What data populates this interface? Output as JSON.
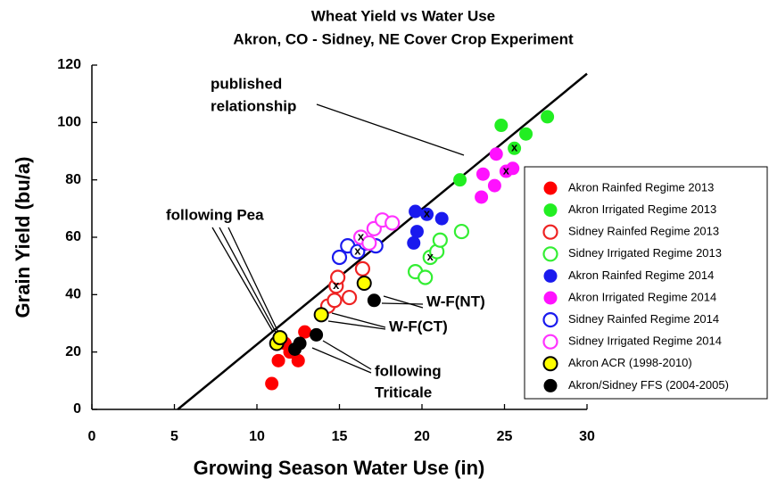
{
  "chart_data": {
    "type": "scatter",
    "title": "Wheat Yield vs Water Use",
    "subtitle": "Akron, CO - Sidney, NE Cover Crop Experiment",
    "x_label": "Growing Season Water Use (in)",
    "y_label": "Grain Yield (bu/a)",
    "xlim": [
      0,
      30
    ],
    "ylim": [
      0,
      120
    ],
    "xticks": [
      0,
      5,
      10,
      15,
      20,
      25,
      30
    ],
    "yticks": [
      0,
      20,
      40,
      60,
      80,
      100,
      120
    ],
    "grid": false,
    "legend": "right",
    "reference_line": {
      "x": [
        5.2,
        30
      ],
      "values": [
        0,
        117
      ],
      "color": "#000000"
    },
    "series": [
      {
        "name": "Akron Rainfed Regime 2013",
        "color": "#ff0000",
        "filled": true,
        "x": [
          10.9,
          11.3,
          12.0,
          12.5,
          12.9,
          11.7
        ],
        "values": [
          9,
          17,
          20,
          17,
          27,
          23
        ]
      },
      {
        "name": "Akron Irrigated Regime 2013",
        "color": "#22ee22",
        "filled": true,
        "x": [
          24.8,
          22.3,
          25.6,
          26.3,
          27.6
        ],
        "values": [
          99,
          80,
          91,
          96,
          102
        ]
      },
      {
        "name": "Sidney Rainfed Regime 2013",
        "color": "#ee2222",
        "filled": false,
        "x": [
          14.3,
          14.7,
          14.8,
          14.9,
          15.6,
          16.4
        ],
        "values": [
          36,
          38,
          43,
          46,
          39,
          49
        ]
      },
      {
        "name": "Sidney Irrigated Regime 2013",
        "color": "#33ee33",
        "filled": false,
        "x": [
          19.6,
          20.2,
          20.5,
          20.9,
          21.1,
          22.4
        ],
        "values": [
          48,
          46,
          53,
          55,
          59,
          62
        ]
      },
      {
        "name": "Akron Rainfed Regime 2014",
        "color": "#1a1aee",
        "filled": true,
        "x": [
          19.5,
          19.7,
          19.6,
          20.3,
          21.2
        ],
        "values": [
          58,
          62,
          69,
          68,
          66.5
        ]
      },
      {
        "name": "Akron Irrigated Regime 2014",
        "color": "#ff11ff",
        "filled": true,
        "x": [
          23.6,
          23.7,
          24.4,
          24.5,
          25.1,
          25.5
        ],
        "values": [
          74,
          82,
          78,
          89,
          83,
          84
        ]
      },
      {
        "name": "Sidney Rainfed Regime 2014",
        "color": "#1a1aee",
        "filled": false,
        "x": [
          15.0,
          15.5,
          16.1,
          16.6,
          17.2
        ],
        "values": [
          53,
          57,
          55,
          58,
          57
        ]
      },
      {
        "name": "Sidney Irrigated Regime 2014",
        "color": "#ff33ff",
        "filled": false,
        "x": [
          16.3,
          16.8,
          17.1,
          17.6,
          18.2
        ],
        "values": [
          60,
          58,
          63,
          66,
          65
        ]
      },
      {
        "name": "Akron ACR (1998-2010)",
        "color": "#ffff00",
        "edge": "#000000",
        "filled": true,
        "x": [
          11.2,
          11.4,
          13.9,
          16.5
        ],
        "values": [
          23,
          25,
          33,
          44
        ]
      },
      {
        "name": "Akron/Sidney FFS (2004-2005)",
        "color": "#000000",
        "filled": true,
        "x": [
          12.3,
          12.6,
          13.6,
          17.1
        ],
        "values": [
          21,
          23,
          26,
          38
        ]
      }
    ],
    "x_marks": {
      "label": "x",
      "x": [
        14.8,
        20.5,
        20.3,
        25.1,
        25.6,
        16.1,
        16.3
      ],
      "values": [
        43,
        53,
        68,
        83,
        91,
        55,
        60
      ]
    },
    "annotations": [
      "published",
      "relationship",
      "following Pea",
      "W-F(NT)",
      "W-F(CT)",
      "following",
      "Triticale"
    ]
  }
}
